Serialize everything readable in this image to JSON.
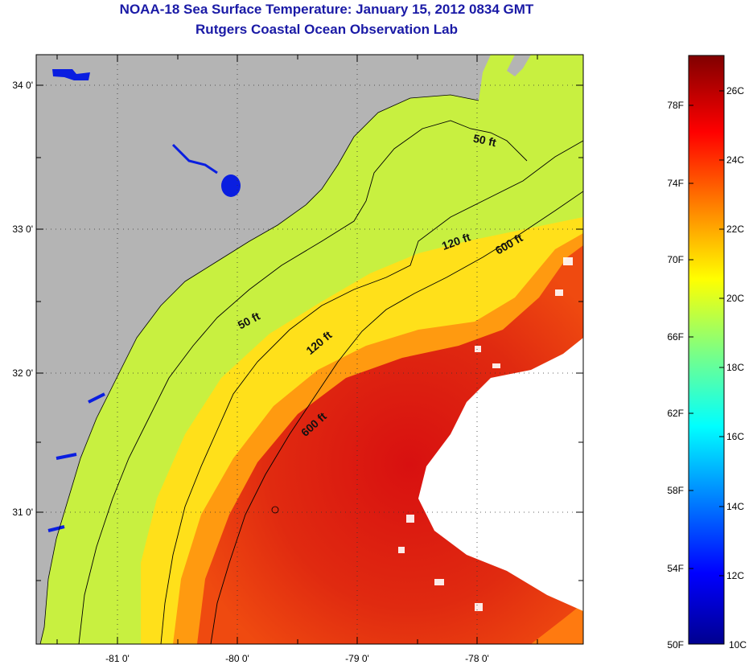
{
  "title": "NOAA-18 Sea Surface Temperature:  January 15, 2012 0834 GMT",
  "subtitle": "Rutgers Coastal Ocean Observation Lab",
  "map": {
    "lon_ticks": [
      "-81 0'",
      "-80 0'",
      "-79 0'",
      "-78 0'"
    ],
    "lat_ticks": [
      "34 0'",
      "33 0'",
      "32 0'",
      "31 0'"
    ],
    "contour_labels": [
      "50 ft",
      "50 ft",
      "120 ft",
      "120 ft",
      "600 ft",
      "600 ft"
    ],
    "colors": {
      "land": "#b4b4b4",
      "no_data": "#ffffff"
    }
  },
  "colorbar": {
    "fahrenheit_labels": [
      "78F",
      "74F",
      "70F",
      "66F",
      "62F",
      "58F",
      "54F",
      "50F"
    ],
    "celsius_labels": [
      "26C",
      "24C",
      "22C",
      "20C",
      "18C",
      "16C",
      "14C",
      "12C",
      "10C"
    ],
    "colormap": "jet"
  }
}
